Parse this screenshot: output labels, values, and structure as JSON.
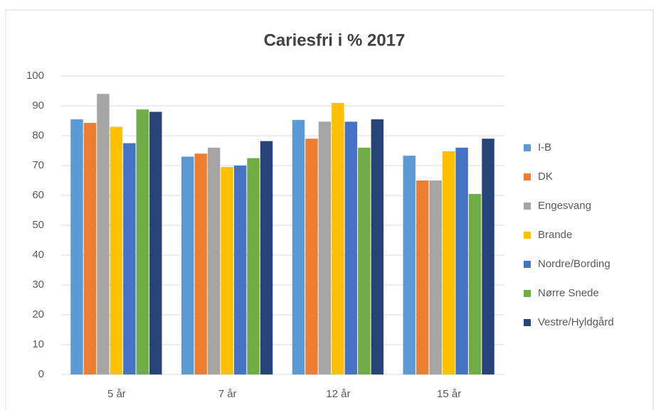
{
  "chart_data": {
    "type": "bar",
    "title": "Cariesfri i % 2017",
    "categories": [
      "5 år",
      "7 år",
      "12 år",
      "15 år"
    ],
    "series": [
      {
        "name": "I-B",
        "color": "#5b9bd5",
        "values": [
          85.5,
          73,
          85.3,
          73.3
        ]
      },
      {
        "name": "DK",
        "color": "#ed7d31",
        "values": [
          84.3,
          74,
          79,
          65
        ]
      },
      {
        "name": "Engesvang",
        "color": "#a5a5a5",
        "values": [
          94,
          76,
          84.7,
          65
        ]
      },
      {
        "name": "Brande",
        "color": "#ffc000",
        "values": [
          83,
          69.5,
          91,
          74.8
        ]
      },
      {
        "name": "Nordre/Bording",
        "color": "#4472c4",
        "values": [
          77.5,
          70,
          84.7,
          76
        ]
      },
      {
        "name": "Nørre Snede",
        "color": "#70ad47",
        "values": [
          88.8,
          72.5,
          76,
          60.5
        ]
      },
      {
        "name": "Vestre/Hyldgård",
        "color": "#264478",
        "values": [
          88,
          78.2,
          85.5,
          79
        ]
      }
    ],
    "ylim": [
      0,
      100
    ],
    "yticks": [
      0,
      10,
      20,
      30,
      40,
      50,
      60,
      70,
      80,
      90,
      100
    ],
    "grid": true,
    "legend": "right"
  }
}
